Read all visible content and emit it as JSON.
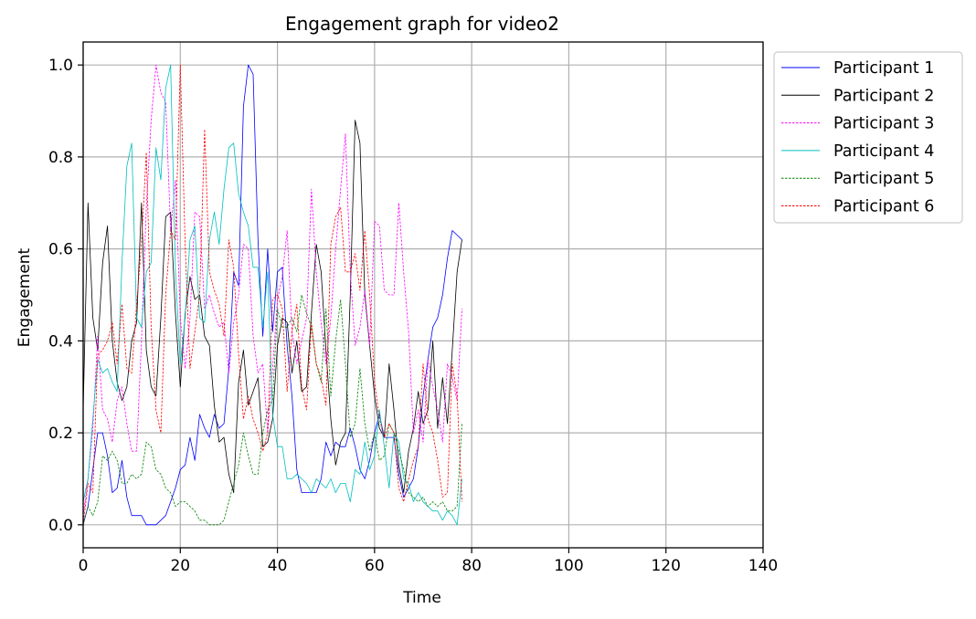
{
  "chart_data": {
    "type": "line",
    "title": "Engagement graph for video2",
    "xlabel": "Time",
    "ylabel": "Engagement",
    "xlim": [
      0,
      140
    ],
    "ylim": [
      -0.05,
      1.05
    ],
    "xticks": [
      0,
      20,
      40,
      60,
      80,
      100,
      120,
      140
    ],
    "yticks": [
      0.0,
      0.2,
      0.4,
      0.6,
      0.8,
      1.0
    ],
    "xtick_labels": [
      "0",
      "20",
      "40",
      "60",
      "80",
      "100",
      "120",
      "140"
    ],
    "ytick_labels": [
      "0.0",
      "0.2",
      "0.4",
      "0.6",
      "0.8",
      "1.0"
    ],
    "grid": true,
    "legend_position": "outside-top-right",
    "series": [
      {
        "name": "Participant 1",
        "color": "#0000ff",
        "dash": "solid",
        "x": [
          0,
          1,
          2,
          3,
          4,
          5,
          6,
          7,
          8,
          9,
          10,
          11,
          12,
          13,
          14,
          15,
          16,
          17,
          18,
          19,
          20,
          21,
          22,
          23,
          24,
          25,
          26,
          27,
          28,
          29,
          30,
          31,
          32,
          33,
          34,
          35,
          36,
          37,
          38,
          39,
          40,
          41,
          42,
          43,
          44,
          45,
          46,
          47,
          48,
          49,
          50,
          51,
          52,
          53,
          54,
          55,
          56,
          57,
          58,
          59,
          60,
          61,
          62,
          63,
          64,
          65,
          66,
          67,
          68,
          69,
          70,
          71,
          72,
          73,
          74,
          75,
          76,
          77,
          78
        ],
        "y": [
          0.0,
          0.04,
          0.12,
          0.2,
          0.2,
          0.15,
          0.07,
          0.08,
          0.14,
          0.06,
          0.02,
          0.02,
          0.02,
          0.0,
          0.0,
          0.0,
          0.01,
          0.02,
          0.05,
          0.08,
          0.12,
          0.13,
          0.19,
          0.14,
          0.24,
          0.21,
          0.19,
          0.24,
          0.21,
          0.22,
          0.34,
          0.55,
          0.52,
          0.91,
          1.0,
          0.98,
          0.62,
          0.41,
          0.6,
          0.42,
          0.55,
          0.56,
          0.39,
          0.28,
          0.12,
          0.07,
          0.07,
          0.07,
          0.07,
          0.1,
          0.18,
          0.15,
          0.18,
          0.17,
          0.17,
          0.21,
          0.17,
          0.12,
          0.1,
          0.14,
          0.2,
          0.24,
          0.19,
          0.19,
          0.19,
          0.11,
          0.06,
          0.08,
          0.1,
          0.17,
          0.28,
          0.36,
          0.43,
          0.45,
          0.5,
          0.58,
          0.64,
          0.63,
          0.62
        ]
      },
      {
        "name": "Participant 2",
        "color": "#000000",
        "dash": "solid",
        "x": [
          0,
          1,
          2,
          3,
          4,
          5,
          6,
          7,
          8,
          9,
          10,
          11,
          12,
          13,
          14,
          15,
          16,
          17,
          18,
          19,
          20,
          21,
          22,
          23,
          24,
          25,
          26,
          27,
          28,
          29,
          30,
          31,
          32,
          33,
          34,
          35,
          36,
          37,
          38,
          39,
          40,
          41,
          42,
          43,
          44,
          45,
          46,
          47,
          48,
          49,
          50,
          51,
          52,
          53,
          54,
          55,
          56,
          57,
          58,
          59,
          60,
          61,
          62,
          63,
          64,
          65,
          66,
          67,
          68,
          69,
          70,
          71,
          72,
          73,
          74,
          75,
          76,
          77,
          78
        ],
        "y": [
          0.25,
          0.7,
          0.45,
          0.38,
          0.57,
          0.65,
          0.4,
          0.31,
          0.27,
          0.3,
          0.4,
          0.44,
          0.7,
          0.38,
          0.3,
          0.28,
          0.45,
          0.67,
          0.68,
          0.46,
          0.3,
          0.46,
          0.54,
          0.49,
          0.5,
          0.41,
          0.39,
          0.26,
          0.18,
          0.19,
          0.11,
          0.07,
          0.31,
          0.38,
          0.26,
          0.29,
          0.32,
          0.17,
          0.18,
          0.23,
          0.39,
          0.45,
          0.44,
          0.33,
          0.4,
          0.29,
          0.3,
          0.46,
          0.61,
          0.55,
          0.38,
          0.23,
          0.13,
          0.18,
          0.2,
          0.5,
          0.88,
          0.83,
          0.5,
          0.39,
          0.28,
          0.21,
          0.19,
          0.35,
          0.25,
          0.13,
          0.07,
          0.16,
          0.21,
          0.29,
          0.22,
          0.25,
          0.4,
          0.21,
          0.32,
          0.22,
          0.38,
          0.55,
          0.62
        ]
      },
      {
        "name": "Participant 3",
        "color": "#ff00ff",
        "dash": "dashed",
        "x": [
          0,
          1,
          2,
          3,
          4,
          5,
          6,
          7,
          8,
          9,
          10,
          11,
          12,
          13,
          14,
          15,
          16,
          17,
          18,
          19,
          20,
          21,
          22,
          23,
          24,
          25,
          26,
          27,
          28,
          29,
          30,
          31,
          32,
          33,
          34,
          35,
          36,
          37,
          38,
          39,
          40,
          41,
          42,
          43,
          44,
          45,
          46,
          47,
          48,
          49,
          50,
          51,
          52,
          53,
          54,
          55,
          56,
          57,
          58,
          59,
          60,
          61,
          62,
          63,
          64,
          65,
          66,
          67,
          68,
          69,
          70,
          71,
          72,
          73,
          74,
          75,
          76,
          77,
          78
        ],
        "y": [
          0.02,
          0.1,
          0.21,
          0.41,
          0.25,
          0.23,
          0.18,
          0.27,
          0.3,
          0.22,
          0.16,
          0.16,
          0.4,
          0.69,
          0.88,
          1.0,
          0.94,
          0.92,
          0.64,
          0.75,
          0.45,
          0.34,
          0.45,
          0.68,
          0.67,
          0.47,
          0.5,
          0.46,
          0.43,
          0.44,
          0.33,
          0.44,
          0.5,
          0.61,
          0.6,
          0.41,
          0.33,
          0.35,
          0.2,
          0.34,
          0.49,
          0.54,
          0.64,
          0.42,
          0.35,
          0.4,
          0.45,
          0.73,
          0.55,
          0.44,
          0.35,
          0.45,
          0.6,
          0.73,
          0.85,
          0.55,
          0.39,
          0.43,
          0.51,
          0.39,
          0.66,
          0.65,
          0.51,
          0.5,
          0.5,
          0.7,
          0.55,
          0.42,
          0.2,
          0.25,
          0.18,
          0.36,
          0.3,
          0.25,
          0.18,
          0.35,
          0.32,
          0.27,
          0.47
        ]
      },
      {
        "name": "Participant 4",
        "color": "#00bfbf",
        "dash": "solid",
        "x": [
          0,
          1,
          2,
          3,
          4,
          5,
          6,
          7,
          8,
          9,
          10,
          11,
          12,
          13,
          14,
          15,
          16,
          17,
          18,
          19,
          20,
          21,
          22,
          23,
          24,
          25,
          26,
          27,
          28,
          29,
          30,
          31,
          32,
          33,
          34,
          35,
          36,
          37,
          38,
          39,
          40,
          41,
          42,
          43,
          44,
          45,
          46,
          47,
          48,
          49,
          50,
          51,
          52,
          53,
          54,
          55,
          56,
          57,
          58,
          59,
          60,
          61,
          62,
          63,
          64,
          65,
          66,
          67,
          68,
          69,
          70,
          71,
          72,
          73,
          74,
          75,
          76,
          77,
          78
        ],
        "y": [
          0.05,
          0.1,
          0.23,
          0.36,
          0.33,
          0.34,
          0.31,
          0.29,
          0.57,
          0.78,
          0.83,
          0.45,
          0.43,
          0.55,
          0.57,
          0.82,
          0.75,
          0.95,
          1.0,
          0.55,
          0.35,
          0.45,
          0.62,
          0.65,
          0.45,
          0.44,
          0.62,
          0.68,
          0.61,
          0.73,
          0.82,
          0.83,
          0.72,
          0.68,
          0.65,
          0.56,
          0.56,
          0.43,
          0.55,
          0.24,
          0.17,
          0.17,
          0.1,
          0.1,
          0.11,
          0.1,
          0.09,
          0.07,
          0.1,
          0.09,
          0.08,
          0.1,
          0.07,
          0.09,
          0.09,
          0.05,
          0.12,
          0.11,
          0.18,
          0.12,
          0.15,
          0.25,
          0.17,
          0.08,
          0.2,
          0.18,
          0.1,
          0.09,
          0.05,
          0.07,
          0.05,
          0.04,
          0.03,
          0.03,
          0.01,
          0.03,
          0.02,
          0.0,
          0.1
        ]
      },
      {
        "name": "Participant 5",
        "color": "#008000",
        "dash": "dashed",
        "x": [
          0,
          1,
          2,
          3,
          4,
          5,
          6,
          7,
          8,
          9,
          10,
          11,
          12,
          13,
          14,
          15,
          16,
          17,
          18,
          19,
          20,
          21,
          22,
          23,
          24,
          25,
          26,
          27,
          28,
          29,
          30,
          31,
          32,
          33,
          34,
          35,
          36,
          37,
          38,
          39,
          40,
          41,
          42,
          43,
          44,
          45,
          46,
          47,
          48,
          49,
          50,
          51,
          52,
          53,
          54,
          55,
          56,
          57,
          58,
          59,
          60,
          61,
          62,
          63,
          64,
          65,
          66,
          67,
          68,
          69,
          70,
          71,
          72,
          73,
          74,
          75,
          76,
          77,
          78
        ],
        "y": [
          0.0,
          0.04,
          0.02,
          0.05,
          0.15,
          0.14,
          0.16,
          0.14,
          0.09,
          0.09,
          0.11,
          0.1,
          0.11,
          0.18,
          0.17,
          0.12,
          0.11,
          0.08,
          0.07,
          0.04,
          0.05,
          0.05,
          0.04,
          0.03,
          0.01,
          0.01,
          0.0,
          0.0,
          0.0,
          0.01,
          0.05,
          0.09,
          0.13,
          0.2,
          0.15,
          0.11,
          0.11,
          0.2,
          0.25,
          0.27,
          0.47,
          0.43,
          0.43,
          0.45,
          0.42,
          0.5,
          0.46,
          0.43,
          0.35,
          0.31,
          0.47,
          0.28,
          0.4,
          0.49,
          0.35,
          0.19,
          0.22,
          0.34,
          0.22,
          0.16,
          0.2,
          0.14,
          0.15,
          0.22,
          0.2,
          0.16,
          0.12,
          0.07,
          0.06,
          0.05,
          0.06,
          0.04,
          0.05,
          0.04,
          0.05,
          0.03,
          0.03,
          0.04,
          0.22
        ]
      },
      {
        "name": "Participant 6",
        "color": "#ff0000",
        "dash": "dashed",
        "x": [
          0,
          1,
          2,
          3,
          4,
          5,
          6,
          7,
          8,
          9,
          10,
          11,
          12,
          13,
          14,
          15,
          16,
          17,
          18,
          19,
          20,
          21,
          22,
          23,
          24,
          25,
          26,
          27,
          28,
          29,
          30,
          31,
          32,
          33,
          34,
          35,
          36,
          37,
          38,
          39,
          40,
          41,
          42,
          43,
          44,
          45,
          46,
          47,
          48,
          49,
          50,
          51,
          52,
          53,
          54,
          55,
          56,
          57,
          58,
          59,
          60,
          61,
          62,
          63,
          64,
          65,
          66,
          67,
          68,
          69,
          70,
          71,
          72,
          73,
          74,
          75,
          76,
          77,
          78
        ],
        "y": [
          0.0,
          0.09,
          0.07,
          0.37,
          0.38,
          0.4,
          0.44,
          0.35,
          0.48,
          0.34,
          0.33,
          0.48,
          0.61,
          0.81,
          0.43,
          0.25,
          0.2,
          0.5,
          0.64,
          0.62,
          1.0,
          0.61,
          0.34,
          0.42,
          0.5,
          0.86,
          0.55,
          0.51,
          0.48,
          0.41,
          0.62,
          0.56,
          0.37,
          0.23,
          0.28,
          0.23,
          0.2,
          0.16,
          0.2,
          0.49,
          0.5,
          0.47,
          0.29,
          0.42,
          0.48,
          0.3,
          0.25,
          0.44,
          0.35,
          0.32,
          0.26,
          0.61,
          0.67,
          0.69,
          0.55,
          0.55,
          0.59,
          0.51,
          0.64,
          0.5,
          0.31,
          0.23,
          0.19,
          0.22,
          0.2,
          0.08,
          0.05,
          0.1,
          0.14,
          0.17,
          0.35,
          0.23,
          0.2,
          0.14,
          0.06,
          0.07,
          0.35,
          0.28,
          0.05
        ]
      }
    ]
  }
}
